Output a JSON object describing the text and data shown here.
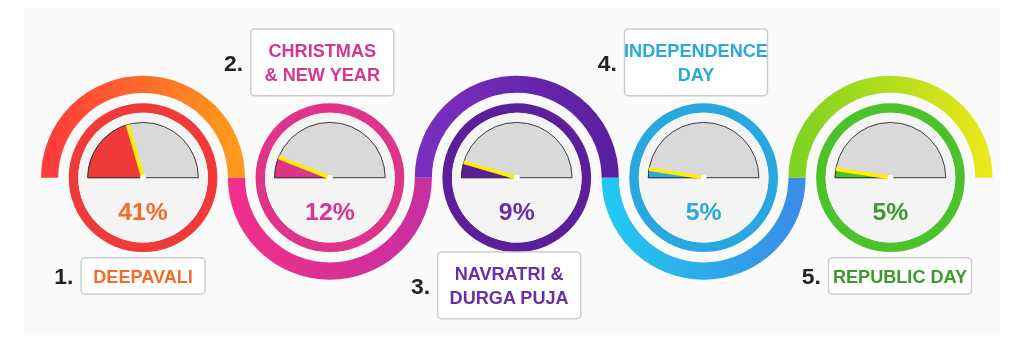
{
  "chart_data": {
    "type": "other",
    "categories": [
      "DEEPAVALI",
      "CHRISTMAS & NEW YEAR",
      "NAVRATRI & DURGA PUJA",
      "INDEPENDENCE DAY",
      "REPUBLIC DAY"
    ],
    "values": [
      41,
      12,
      9,
      5,
      5
    ],
    "value_labels": [
      "41%",
      "12%",
      "9%",
      "5%",
      "5%"
    ],
    "annotations": [
      "1.",
      "2.",
      "3.",
      "4.",
      "5."
    ]
  }
}
